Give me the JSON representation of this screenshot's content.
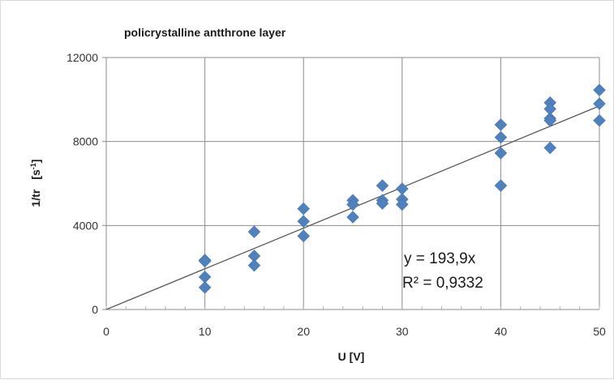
{
  "chart_data": {
    "type": "scatter",
    "title": "policrystalline antthrone layer",
    "xlabel": "U   [V]",
    "ylabel_main": "1/tr",
    "ylabel_unit": "[s",
    "ylabel_exp": "-1",
    "ylabel_close": "]",
    "xlim": [
      0,
      50
    ],
    "ylim": [
      0,
      12000
    ],
    "x_ticks": [
      0,
      10,
      20,
      30,
      40,
      50
    ],
    "x_tick_labels": [
      "0",
      "10",
      "20",
      "30",
      "40",
      "50"
    ],
    "y_ticks": [
      0,
      4000,
      8000,
      12000
    ],
    "y_tick_labels": [
      "0",
      "4000",
      "8000",
      "12000"
    ],
    "grid": true,
    "series": [
      {
        "marker": "diamond",
        "color": "#4f81bd",
        "points": [
          [
            10,
            2350
          ],
          [
            10,
            2300
          ],
          [
            10,
            1550
          ],
          [
            10,
            1050
          ],
          [
            15,
            3700
          ],
          [
            15,
            2550
          ],
          [
            15,
            2100
          ],
          [
            20,
            4800
          ],
          [
            20,
            4200
          ],
          [
            20,
            3500
          ],
          [
            25,
            5200
          ],
          [
            25,
            5000
          ],
          [
            25,
            4400
          ],
          [
            28,
            5900
          ],
          [
            28,
            5200
          ],
          [
            28,
            5050
          ],
          [
            30,
            5750
          ],
          [
            30,
            5250
          ],
          [
            30,
            5000
          ],
          [
            40,
            8800
          ],
          [
            40,
            8200
          ],
          [
            40,
            7450
          ],
          [
            40,
            5900
          ],
          [
            45,
            9850
          ],
          [
            45,
            9550
          ],
          [
            45,
            9100
          ],
          [
            45,
            9000
          ],
          [
            45,
            7700
          ],
          [
            50,
            10450
          ],
          [
            50,
            9800
          ],
          [
            50,
            9000
          ]
        ]
      }
    ],
    "trendline": {
      "type": "linear",
      "slope": 193.9,
      "intercept": 0,
      "color": "#595959"
    },
    "annotations": [
      "y = 193,9x",
      "R² = 0,9332"
    ]
  }
}
